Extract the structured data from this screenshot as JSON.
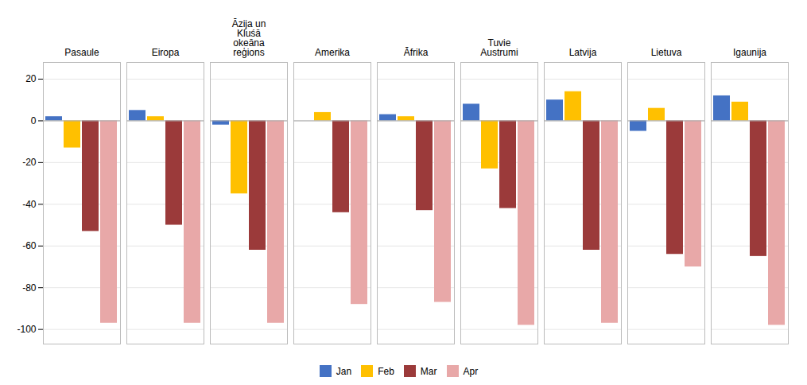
{
  "chart_data": {
    "type": "bar",
    "categories": [
      "Pasaule",
      "Eiropa",
      "Āzija un\nKluśā\nokeāna\nreģions",
      "Amerika",
      "Āfrika",
      "Tuvie\nAustrumi",
      "Latvija",
      "Lietuva",
      "Igaunija"
    ],
    "series": [
      {
        "name": "Jan",
        "color": "#4472C4",
        "values": [
          2,
          5,
          -2,
          0,
          3,
          8,
          10,
          -5,
          12
        ]
      },
      {
        "name": "Feb",
        "color": "#FFC000",
        "values": [
          -13,
          2,
          -35,
          4,
          2,
          -23,
          14,
          6,
          9
        ]
      },
      {
        "name": "Mar",
        "color": "#9B3A3A",
        "values": [
          -53,
          -50,
          -62,
          -44,
          -43,
          -42,
          -62,
          -64,
          -65
        ]
      },
      {
        "name": "Apr",
        "color": "#E8A8A8",
        "values": [
          -97,
          -97,
          -97,
          -88,
          -87,
          -98,
          -97,
          -70,
          -98
        ]
      }
    ],
    "ylim": [
      -107,
      28
    ],
    "yticks": [
      -100,
      -80,
      -60,
      -40,
      -20,
      0,
      20
    ],
    "grid": true,
    "legend": "bottom"
  }
}
